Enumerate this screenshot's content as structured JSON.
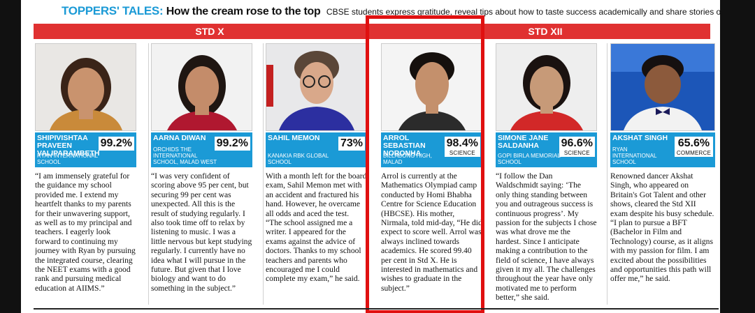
{
  "headline": {
    "kicker": "TOPPERS' TALES:",
    "title": "How the cream rose to the top",
    "subtitle": "CBSE students express gratitude, reveal tips about how to taste success academically and share stories of resilience"
  },
  "sections": {
    "std_x": "STD X",
    "std_xii": "STD XII"
  },
  "colors": {
    "accent_blue": "#1b9ad6",
    "band_red": "#e03131",
    "highlight_frame": "#e01010"
  },
  "toppers": [
    {
      "name": "SHIPIVISHTAA PRAVEEN VALIPARAMBETH",
      "school": "RYAN INTERNATIONAL SCHOOL",
      "percent": "99.2%",
      "stream": "",
      "text": "“I am immensely grateful for the guidance my school provided me. I extend my heartfelt thanks to my parents for their unwavering support, as well as to my principal and teachers. I eagerly look forward to continuing my journey with Ryan by pursuing the integrated course, clearing the NEET exams with a good rank and pursuing medical education at AIIMS.”"
    },
    {
      "name": "AARNA DIWAN",
      "school": "ORCHIDS THE INTERNATIONAL SCHOOL, MALAD WEST",
      "percent": "99.2%",
      "stream": "",
      "text": "“I was very confident of scoring above 95 per cent, but securing 99 per cent was unexpected. All this is the result of studying regularly. I also took time off to relax by listening to music. I was a little nervous but kept studying regularly. I currently have no idea what I will pursue in the future. But given that I love biology and want to do something in the subject.”"
    },
    {
      "name": "SAHIL MEMON",
      "school": "KANAKIA RBK GLOBAL SCHOOL",
      "percent": "73%",
      "stream": "",
      "text": "With a month left for the board exam, Sahil Memon met with an accident and fractured his hand. However, he overcame all odds and aced the test. “The school assigned me a writer. I appeared for the exams against the advice of doctors. Thanks to my school teachers and parents who encouraged me I could complete my exam,” he said."
    },
    {
      "name": "ARROL SEBASTIAN NORONHA",
      "school": "BILLABONG HIGH, MALAD",
      "percent": "98.4%",
      "stream": "SCIENCE",
      "text": "Arrol is currently at the Mathematics Olympiad camp conducted by Homi Bhabha Centre for Science Education (HBCSE). His mother, Nirmala, told mid-day, “He did expect to score well. Arrol was always inclined towards academics. He scored 99.40 per cent in Std X. He is interested in mathematics and wishes to graduate in the subject.”"
    },
    {
      "name": "SIMONE JANE SALDANHA",
      "school": "GOPI BIRLA MEMORIAL SCHOOL",
      "percent": "96.6%",
      "stream": "SCIENCE",
      "text": "“I follow the Dan Waldschmidt saying: ‘The only thing standing between you and outrageous success is continuous progress’. My passion for the subjects I chose was what drove me the hardest. Since I anticipate making a contribution to the field of science, I have always given it my all. The challenges throughout the year have only motivated me to perform better,” she said."
    },
    {
      "name": "AKSHAT SINGH",
      "school": "RYAN INTERNATIONAL SCHOOL",
      "percent": "65.6%",
      "stream": "COMMERCE",
      "text": "Renowned dancer Akshat Singh, who appeared on Britain's Got Talent and other shows, cleared the Std XII exam despite his busy schedule. “I plan to pursue a BFT (Bachelor in Film and Technology) course, as it aligns with my passion for film. I am excited about the possibilities and opportunities this path will offer me,” he said."
    }
  ]
}
